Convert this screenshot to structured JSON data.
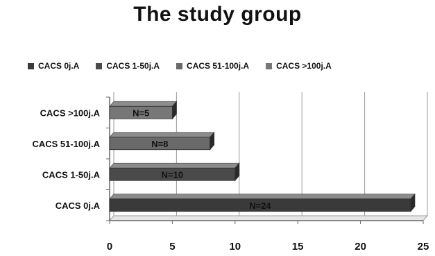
{
  "chart_data": {
    "type": "bar",
    "orientation": "horizontal",
    "title": "The study group",
    "categories": [
      "CACS 0j.A",
      "CACS 1-50j.A",
      "CACS 51-100j.A",
      "CACS >100j.A"
    ],
    "values": [
      24,
      10,
      8,
      5
    ],
    "data_labels": [
      "N=24",
      "N=10",
      "N=8",
      "N=5"
    ],
    "legend": [
      "CACS 0j.A",
      "CACS 1-50j.A",
      "CACS 51-100j.A",
      "CACS >100j.A"
    ],
    "legend_position": "top",
    "colors": [
      "#3a3a3a",
      "#4a4a4a",
      "#6a6a6a",
      "#777777"
    ],
    "xlim": [
      0,
      25
    ],
    "xticks": [
      "0",
      "5",
      "10",
      "15",
      "20",
      "25"
    ],
    "grid": true,
    "xlabel": "",
    "ylabel": ""
  }
}
